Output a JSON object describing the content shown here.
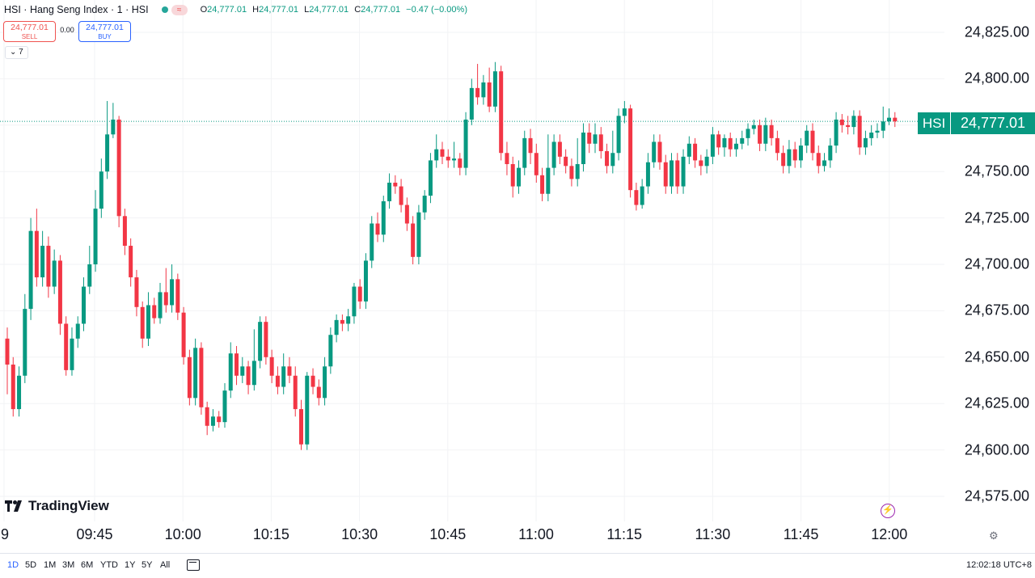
{
  "header": {
    "title": "HSI · Hang Seng Index · 1 · HSI",
    "status_pill": "≈",
    "ohlc": [
      {
        "key": "O",
        "value": "24,777.01"
      },
      {
        "key": "H",
        "value": "24,777.01"
      },
      {
        "key": "L",
        "value": "24,777.01"
      },
      {
        "key": "C",
        "value": "24,777.01"
      }
    ],
    "change": "−0.47 (−0.00%)"
  },
  "trade": {
    "sell_price": "24,777.01",
    "sell_label": "SELL",
    "spread": "0.00",
    "buy_price": "24,777.01",
    "buy_label": "BUY"
  },
  "indicators_toggle": "7",
  "price_axis": [
    "24,825.00",
    "24,800.00",
    "24,777.01",
    "24,750.00",
    "24,725.00",
    "24,700.00",
    "24,675.00",
    "24,650.00",
    "24,625.00",
    "24,600.00",
    "24,575.00"
  ],
  "last_price": {
    "symbol": "HSI",
    "value": "24,777.01"
  },
  "logo_text": "TradingView",
  "bottom_bar": {
    "ranges": [
      "1D",
      "5D",
      "1M",
      "3M",
      "6M",
      "YTD",
      "1Y",
      "5Y",
      "All"
    ],
    "active_range": "1D",
    "clock": "12:02:18 UTC+8"
  },
  "colors": {
    "up": "#089981",
    "down": "#f23645",
    "accent": "#2962ff"
  },
  "chart_data": {
    "type": "candlestick",
    "title": "HSI · Hang Seng Index · 1 · HSI",
    "interval": "1 minute",
    "ylim": [
      24560,
      24835
    ],
    "y_ticks": [
      24575,
      24600,
      24625,
      24650,
      24675,
      24700,
      24725,
      24750,
      24775,
      24800,
      24825
    ],
    "x_ticks": [
      "9",
      "09:45",
      "10:00",
      "10:15",
      "10:30",
      "10:45",
      "11:00",
      "11:15",
      "11:30",
      "11:45",
      "12:00"
    ],
    "last_price": 24777.01,
    "grid": true,
    "candles": [
      [
        "09:29",
        24660,
        24646,
        24666,
        24630
      ],
      [
        "09:30",
        24646,
        24622,
        24650,
        24618
      ],
      [
        "09:31",
        24622,
        24640,
        24645,
        24618
      ],
      [
        "09:32",
        24640,
        24676,
        24684,
        24636
      ],
      [
        "09:33",
        24676,
        24718,
        24725,
        24670
      ],
      [
        "09:34",
        24718,
        24693,
        24730,
        24688
      ],
      [
        "09:35",
        24693,
        24710,
        24718,
        24688
      ],
      [
        "09:36",
        24710,
        24688,
        24715,
        24682
      ],
      [
        "09:37",
        24688,
        24702,
        24708,
        24684
      ],
      [
        "09:38",
        24702,
        24668,
        24705,
        24662
      ],
      [
        "09:39",
        24668,
        24643,
        24672,
        24640
      ],
      [
        "09:40",
        24643,
        24660,
        24666,
        24640
      ],
      [
        "09:41",
        24660,
        24668,
        24672,
        24655
      ],
      [
        "09:42",
        24668,
        24688,
        24693,
        24664
      ],
      [
        "09:43",
        24688,
        24700,
        24710,
        24684
      ],
      [
        "09:44",
        24700,
        24730,
        24740,
        24696
      ],
      [
        "09:45",
        24730,
        24750,
        24757,
        24725
      ],
      [
        "09:46",
        24750,
        24770,
        24788,
        24746
      ],
      [
        "09:47",
        24770,
        24778,
        24787,
        24768
      ],
      [
        "09:48",
        24778,
        24726,
        24780,
        24720
      ],
      [
        "09:49",
        24726,
        24710,
        24730,
        24705
      ],
      [
        "09:50",
        24710,
        24693,
        24714,
        24688
      ],
      [
        "09:51",
        24693,
        24677,
        24697,
        24672
      ],
      [
        "09:52",
        24677,
        24660,
        24680,
        24655
      ],
      [
        "09:53",
        24660,
        24678,
        24685,
        24656
      ],
      [
        "09:54",
        24678,
        24671,
        24682,
        24668
      ],
      [
        "09:55",
        24671,
        24685,
        24690,
        24668
      ],
      [
        "09:56",
        24685,
        24678,
        24698,
        24674
      ],
      [
        "09:57",
        24678,
        24692,
        24700,
        24674
      ],
      [
        "09:58",
        24692,
        24674,
        24695,
        24670
      ],
      [
        "09:59",
        24674,
        24650,
        24677,
        24646
      ],
      [
        "10:00",
        24650,
        24628,
        24654,
        24624
      ],
      [
        "10:01",
        24628,
        24655,
        24660,
        24624
      ],
      [
        "10:02",
        24655,
        24623,
        24658,
        24619
      ],
      [
        "10:03",
        24623,
        24613,
        24626,
        24608
      ],
      [
        "10:04",
        24613,
        24618,
        24622,
        24610
      ],
      [
        "10:05",
        24618,
        24615,
        24621,
        24612
      ],
      [
        "10:06",
        24615,
        24632,
        24636,
        24612
      ],
      [
        "10:07",
        24632,
        24652,
        24658,
        24628
      ],
      [
        "10:08",
        24652,
        24640,
        24656,
        24635
      ],
      [
        "10:09",
        24640,
        24645,
        24650,
        24636
      ],
      [
        "10:10",
        24645,
        24635,
        24648,
        24630
      ],
      [
        "10:11",
        24635,
        24648,
        24665,
        24632
      ],
      [
        "10:12",
        24648,
        24669,
        24672,
        24644
      ],
      [
        "10:13",
        24669,
        24650,
        24672,
        24646
      ],
      [
        "10:14",
        24650,
        24640,
        24654,
        24636
      ],
      [
        "10:15",
        24640,
        24634,
        24645,
        24630
      ],
      [
        "10:16",
        24634,
        24645,
        24652,
        24630
      ],
      [
        "10:17",
        24645,
        24640,
        24650,
        24636
      ],
      [
        "10:18",
        24640,
        24622,
        24645,
        24618
      ],
      [
        "10:19",
        24622,
        24603,
        24627,
        24600
      ],
      [
        "10:20",
        24603,
        24640,
        24642,
        24600
      ],
      [
        "10:21",
        24640,
        24634,
        24644,
        24630
      ],
      [
        "10:22",
        24634,
        24628,
        24638,
        24624
      ],
      [
        "10:23",
        24628,
        24645,
        24650,
        24624
      ],
      [
        "10:24",
        24645,
        24662,
        24666,
        24641
      ],
      [
        "10:25",
        24662,
        24670,
        24673,
        24658
      ],
      [
        "10:26",
        24670,
        24668,
        24673,
        24664
      ],
      [
        "10:27",
        24668,
        24672,
        24676,
        24664
      ],
      [
        "10:28",
        24672,
        24688,
        24690,
        24668
      ],
      [
        "10:29",
        24688,
        24680,
        24692,
        24676
      ],
      [
        "10:30",
        24680,
        24702,
        24706,
        24676
      ],
      [
        "10:31",
        24702,
        24722,
        24726,
        24698
      ],
      [
        "10:32",
        24722,
        24716,
        24728,
        24712
      ],
      [
        "10:33",
        24716,
        24734,
        24737,
        24712
      ],
      [
        "10:34",
        24734,
        24744,
        24749,
        24730
      ],
      [
        "10:35",
        24744,
        24742,
        24748,
        24738
      ],
      [
        "10:36",
        24742,
        24732,
        24746,
        24728
      ],
      [
        "10:37",
        24732,
        24722,
        24736,
        24718
      ],
      [
        "10:38",
        24722,
        24704,
        24726,
        24700
      ],
      [
        "10:39",
        24704,
        24728,
        24732,
        24700
      ],
      [
        "10:40",
        24728,
        24737,
        24740,
        24724
      ],
      [
        "10:41",
        24737,
        24756,
        24760,
        24733
      ],
      [
        "10:42",
        24756,
        24762,
        24770,
        24752
      ],
      [
        "10:43",
        24762,
        24758,
        24766,
        24754
      ],
      [
        "10:44",
        24758,
        24756,
        24762,
        24752
      ],
      [
        "10:45",
        24756,
        24757,
        24766,
        24752
      ],
      [
        "10:46",
        24757,
        24752,
        24760,
        24748
      ],
      [
        "10:47",
        24752,
        24778,
        24782,
        24748
      ],
      [
        "10:48",
        24778,
        24795,
        24800,
        24775
      ],
      [
        "10:49",
        24795,
        24790,
        24808,
        24786
      ],
      [
        "10:50",
        24790,
        24798,
        24802,
        24786
      ],
      [
        "10:51",
        24798,
        24785,
        24806,
        24782
      ],
      [
        "10:52",
        24785,
        24804,
        24809,
        24782
      ],
      [
        "10:53",
        24804,
        24760,
        24807,
        24756
      ],
      [
        "10:54",
        24760,
        24754,
        24766,
        24748
      ],
      [
        "10:55",
        24754,
        24742,
        24758,
        24736
      ],
      [
        "10:56",
        24742,
        24752,
        24756,
        24738
      ],
      [
        "10:57",
        24752,
        24768,
        24772,
        24748
      ],
      [
        "10:58",
        24768,
        24760,
        24773,
        24754
      ],
      [
        "10:59",
        24760,
        24748,
        24765,
        24744
      ],
      [
        "11:00",
        24748,
        24738,
        24752,
        24734
      ],
      [
        "11:01",
        24738,
        24752,
        24770,
        24734
      ],
      [
        "11:02",
        24752,
        24766,
        24770,
        24748
      ],
      [
        "11:03",
        24766,
        24758,
        24770,
        24754
      ],
      [
        "11:04",
        24758,
        24753,
        24762,
        24749
      ],
      [
        "11:05",
        24753,
        24746,
        24757,
        24742
      ],
      [
        "11:06",
        24746,
        24754,
        24768,
        24742
      ],
      [
        "11:07",
        24754,
        24771,
        24776,
        24750
      ],
      [
        "11:08",
        24771,
        24765,
        24776,
        24760
      ],
      [
        "11:09",
        24765,
        24770,
        24776,
        24760
      ],
      [
        "11:10",
        24770,
        24761,
        24774,
        24757
      ],
      [
        "11:11",
        24761,
        24753,
        24765,
        24749
      ],
      [
        "11:12",
        24753,
        24760,
        24772,
        24749
      ],
      [
        "11:13",
        24760,
        24780,
        24784,
        24756
      ],
      [
        "11:14",
        24780,
        24784,
        24788,
        24776
      ],
      [
        "11:15",
        24784,
        24740,
        24786,
        24736
      ],
      [
        "11:16",
        24740,
        24732,
        24744,
        24729
      ],
      [
        "11:17",
        24732,
        24742,
        24746,
        24730
      ],
      [
        "11:18",
        24742,
        24755,
        24760,
        24738
      ],
      [
        "11:19",
        24755,
        24766,
        24770,
        24752
      ],
      [
        "11:20",
        24766,
        24755,
        24770,
        24751
      ],
      [
        "11:21",
        24755,
        24742,
        24759,
        24738
      ],
      [
        "11:22",
        24742,
        24756,
        24760,
        24738
      ],
      [
        "11:23",
        24756,
        24742,
        24760,
        24738
      ],
      [
        "11:24",
        24742,
        24758,
        24762,
        24738
      ],
      [
        "11:25",
        24758,
        24765,
        24769,
        24754
      ],
      [
        "11:26",
        24765,
        24756,
        24768,
        24752
      ],
      [
        "11:27",
        24756,
        24753,
        24759,
        24748
      ],
      [
        "11:28",
        24753,
        24758,
        24762,
        24749
      ],
      [
        "11:29",
        24758,
        24770,
        24774,
        24754
      ],
      [
        "11:30",
        24770,
        24763,
        24772,
        24759
      ],
      [
        "11:31",
        24763,
        24768,
        24770,
        24758
      ],
      [
        "11:32",
        24768,
        24762,
        24771,
        24758
      ],
      [
        "11:33",
        24762,
        24765,
        24768,
        24758
      ],
      [
        "11:34",
        24765,
        24768,
        24772,
        24762
      ],
      [
        "11:35",
        24768,
        24773,
        24776,
        24764
      ],
      [
        "11:36",
        24773,
        24775,
        24778,
        24770
      ],
      [
        "11:37",
        24775,
        24765,
        24778,
        24761
      ],
      [
        "11:38",
        24765,
        24775,
        24779,
        24761
      ],
      [
        "11:39",
        24775,
        24768,
        24778,
        24764
      ],
      [
        "11:40",
        24768,
        24760,
        24772,
        24756
      ],
      [
        "11:41",
        24760,
        24753,
        24764,
        24749
      ],
      [
        "11:42",
        24753,
        24762,
        24767,
        24749
      ],
      [
        "11:43",
        24762,
        24756,
        24766,
        24752
      ],
      [
        "11:44",
        24756,
        24764,
        24768,
        24752
      ],
      [
        "11:45",
        24764,
        24772,
        24775,
        24760
      ],
      [
        "11:46",
        24772,
        24760,
        24776,
        24756
      ],
      [
        "11:47",
        24760,
        24753,
        24764,
        24749
      ],
      [
        "11:48",
        24753,
        24756,
        24760,
        24750
      ],
      [
        "11:49",
        24756,
        24764,
        24768,
        24752
      ],
      [
        "11:50",
        24764,
        24778,
        24782,
        24760
      ],
      [
        "11:51",
        24778,
        24775,
        24781,
        24771
      ],
      [
        "11:52",
        24775,
        24774,
        24780,
        24770
      ],
      [
        "11:53",
        24774,
        24780,
        24783,
        24770
      ],
      [
        "11:54",
        24780,
        24763,
        24783,
        24759
      ],
      [
        "11:55",
        24763,
        24768,
        24772,
        24759
      ],
      [
        "11:56",
        24768,
        24771,
        24775,
        24764
      ],
      [
        "11:57",
        24771,
        24772,
        24776,
        24768
      ],
      [
        "11:58",
        24772,
        24777,
        24785,
        24768
      ],
      [
        "11:59",
        24777,
        24779,
        24784,
        24775
      ],
      [
        "12:00",
        24779,
        24777.01,
        24782,
        24774
      ]
    ]
  }
}
